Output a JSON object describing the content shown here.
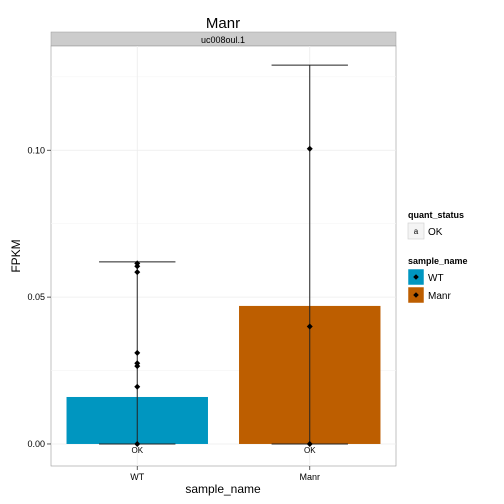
{
  "chart_data": {
    "type": "bar",
    "title": "Manr",
    "facet_label": "uc008oul.1",
    "xlabel": "sample_name",
    "ylabel": "FPKM",
    "categories": [
      "WT",
      "Manr"
    ],
    "values": [
      0.016,
      0.047
    ],
    "error_bars": [
      {
        "category": "WT",
        "low": 0.0,
        "high": 0.062
      },
      {
        "category": "Manr",
        "low": 0.0,
        "high": 0.129
      }
    ],
    "replicate_points": [
      {
        "category": "WT",
        "values": [
          0.0,
          0.0195,
          0.0265,
          0.0275,
          0.031,
          0.0585,
          0.0605,
          0.0615
        ]
      },
      {
        "category": "Manr",
        "values": [
          0.0,
          0.04,
          0.1005
        ]
      }
    ],
    "bar_annotations": [
      {
        "category": "WT",
        "text": "OK"
      },
      {
        "category": "Manr",
        "text": "OK"
      }
    ],
    "ylim": [
      -0.0075,
      0.1355
    ],
    "yticks": [
      0.0,
      0.05,
      0.1
    ],
    "ytick_labels": [
      "0.00",
      "0.05",
      "0.10"
    ],
    "grid": true,
    "legend_placement": "right",
    "legends": [
      {
        "title": "quant_status",
        "entries": [
          {
            "key_text": "a",
            "label": "OK"
          }
        ]
      },
      {
        "title": "sample_name",
        "entries": [
          {
            "label": "WT",
            "color": "#0096C0"
          },
          {
            "label": "Manr",
            "color": "#BD5E00"
          }
        ]
      }
    ],
    "colors": {
      "WT": "#0096C0",
      "Manr": "#BD5E00",
      "panel_bg": "#ffffff",
      "strip_bg": "#cccccc",
      "grid": "#f0f0f0"
    }
  }
}
